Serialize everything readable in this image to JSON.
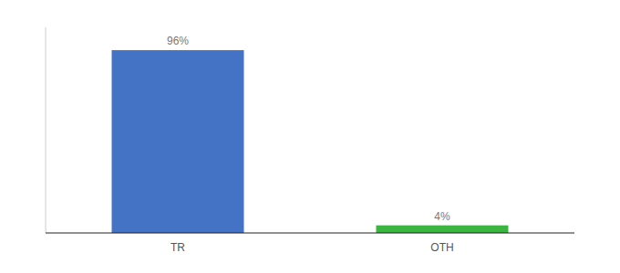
{
  "chart_data": {
    "type": "bar",
    "categories": [
      "TR",
      "OTH"
    ],
    "values": [
      96,
      4
    ],
    "value_labels": [
      "96%",
      "4%"
    ],
    "colors": [
      "#4472c4",
      "#3cb540"
    ],
    "ylim": [
      0,
      108
    ],
    "data_labels": true,
    "tick_labels": "x"
  }
}
